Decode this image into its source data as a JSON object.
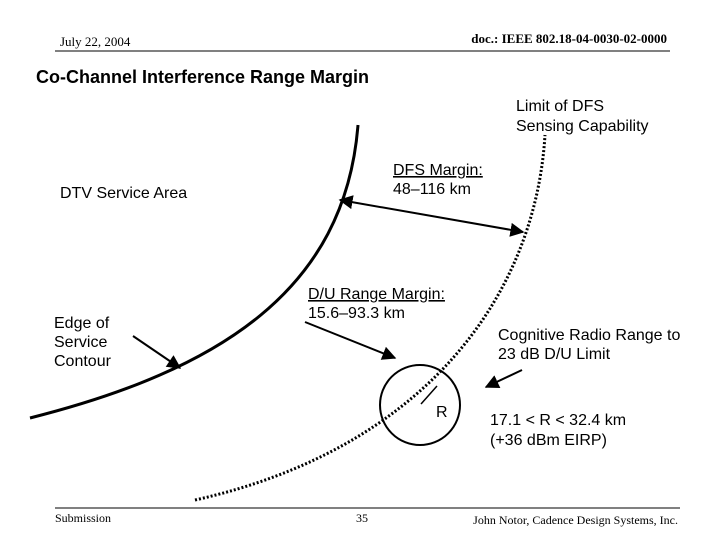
{
  "header": {
    "date": "July 22, 2004",
    "doc_id": "doc.: IEEE 802.18-04-0030-02-0000"
  },
  "title": "Co-Channel Interference Range Margin",
  "labels": {
    "dfs_limit": [
      "Limit of DFS",
      "Sensing Capability"
    ],
    "dfs_margin": [
      "DFS Margin:",
      "48–116 km"
    ],
    "dtv_area": [
      "DTV Service Area"
    ],
    "du_margin": [
      "D/U Range Margin:",
      "15.6–93.3 km"
    ],
    "edge": [
      "Edge of",
      "Service",
      "Contour"
    ],
    "cognitive": [
      "Cognitive Radio Range to",
      "23 dB D/U Limit"
    ],
    "radius": [
      "R"
    ],
    "range": [
      "17.1 < R < 32.4 km",
      "(+36 dBm EIRP)"
    ]
  },
  "footer": {
    "left": "Submission",
    "page": "35",
    "author": "John Notor, Cadence Design Systems, Inc."
  }
}
